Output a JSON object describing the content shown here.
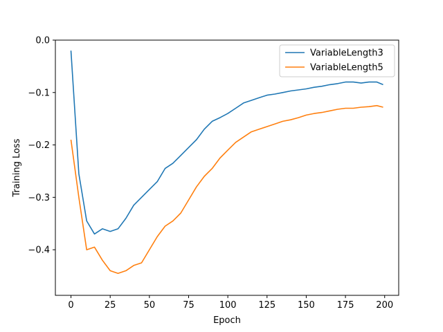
{
  "chart_data": {
    "type": "line",
    "title": "",
    "xlabel": "Epoch",
    "ylabel": "Training Loss",
    "xlim": [
      -9.95,
      208.95
    ],
    "ylim": [
      -0.487,
      0.0
    ],
    "xticks": [
      0,
      25,
      50,
      75,
      100,
      125,
      150,
      175,
      200
    ],
    "yticks": [
      0.0,
      -0.1,
      -0.2,
      -0.3,
      -0.4
    ],
    "ytick_labels": [
      "0.0",
      "−0.1",
      "−0.2",
      "−0.3",
      "−0.4"
    ],
    "grid": false,
    "legend_position": "upper-right",
    "x": [
      0,
      5,
      10,
      15,
      20,
      25,
      30,
      35,
      40,
      45,
      50,
      55,
      60,
      65,
      70,
      75,
      80,
      85,
      90,
      95,
      100,
      105,
      110,
      115,
      120,
      125,
      130,
      135,
      140,
      145,
      150,
      155,
      160,
      165,
      170,
      175,
      180,
      185,
      190,
      195,
      199
    ],
    "series": [
      {
        "name": "VariableLength3",
        "color": "#1f77b4",
        "values": [
          -0.02,
          -0.255,
          -0.345,
          -0.37,
          -0.36,
          -0.365,
          -0.36,
          -0.34,
          -0.315,
          -0.3,
          -0.285,
          -0.27,
          -0.245,
          -0.235,
          -0.22,
          -0.205,
          -0.19,
          -0.17,
          -0.155,
          -0.148,
          -0.14,
          -0.13,
          -0.12,
          -0.115,
          -0.11,
          -0.105,
          -0.103,
          -0.1,
          -0.097,
          -0.095,
          -0.093,
          -0.09,
          -0.088,
          -0.085,
          -0.083,
          -0.08,
          -0.08,
          -0.082,
          -0.08,
          -0.08,
          -0.085
        ]
      },
      {
        "name": "VariableLength5",
        "color": "#ff7f0e",
        "values": [
          -0.19,
          -0.3,
          -0.4,
          -0.395,
          -0.42,
          -0.44,
          -0.445,
          -0.44,
          -0.43,
          -0.425,
          -0.4,
          -0.375,
          -0.355,
          -0.345,
          -0.33,
          -0.305,
          -0.28,
          -0.26,
          -0.245,
          -0.225,
          -0.21,
          -0.195,
          -0.185,
          -0.175,
          -0.17,
          -0.165,
          -0.16,
          -0.155,
          -0.152,
          -0.148,
          -0.143,
          -0.14,
          -0.138,
          -0.135,
          -0.132,
          -0.13,
          -0.13,
          -0.128,
          -0.127,
          -0.125,
          -0.128
        ]
      }
    ]
  }
}
